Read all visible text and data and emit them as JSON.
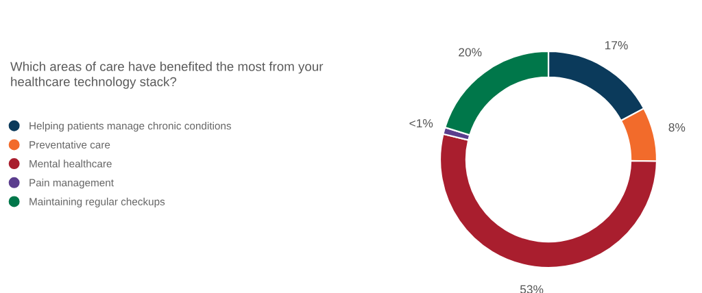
{
  "chart_data": {
    "type": "donut",
    "title": "Which areas of care have benefited the most from your\nhealthcare technology stack?",
    "categories": [
      "Helping patients manage chronic conditions",
      "Preventative care",
      "Mental healthcare",
      "Pain management",
      "Maintaining regular checkups"
    ],
    "values": [
      17,
      8,
      53,
      1,
      20
    ],
    "value_labels": [
      "17%",
      "8%",
      "53%",
      "<1%",
      "20%"
    ],
    "colors": [
      "#0b3a5b",
      "#f26b2b",
      "#a91e2e",
      "#5b3e8e",
      "#00774a"
    ],
    "legend": "left"
  }
}
